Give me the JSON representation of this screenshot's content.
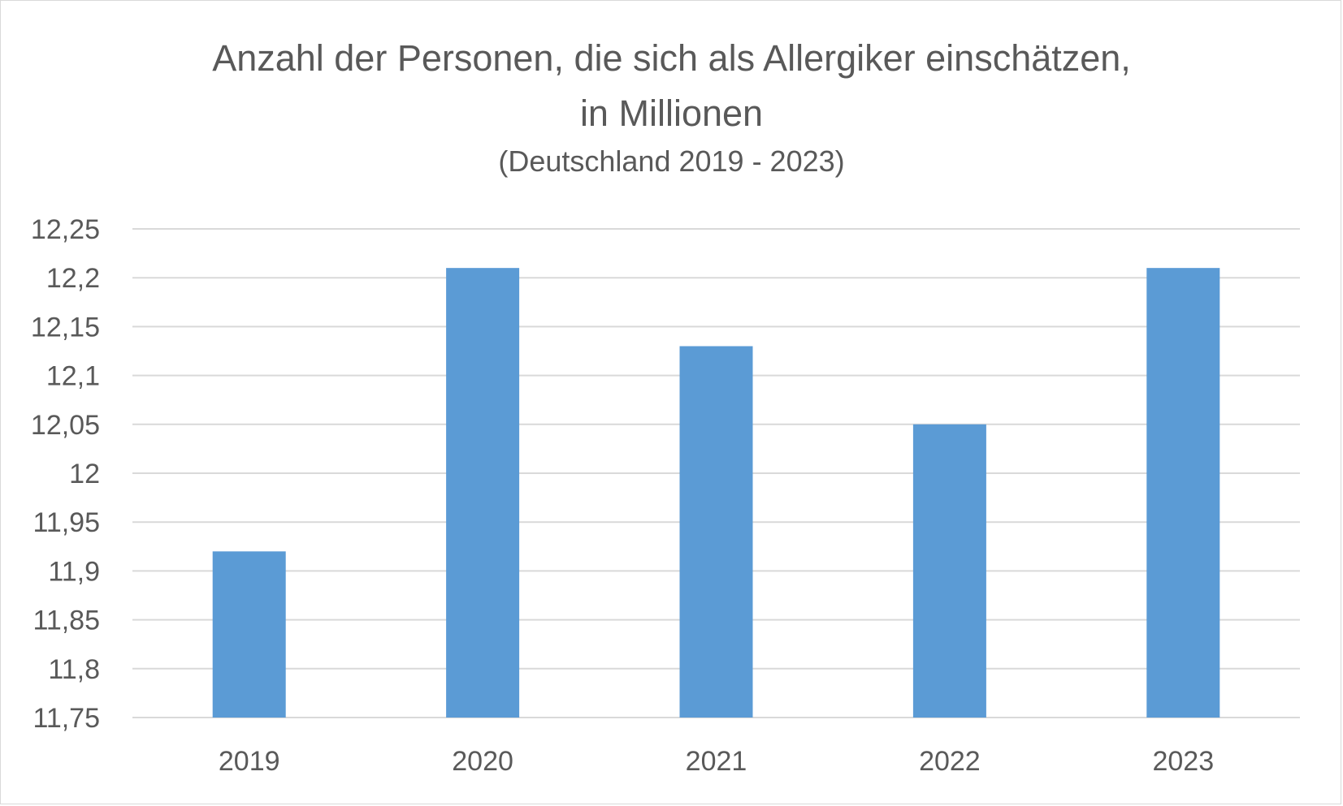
{
  "chart_data": {
    "type": "bar",
    "title_lines": [
      "Anzahl der Personen, die sich als Allergiker einschätzen,",
      "in Millionen"
    ],
    "subtitle": "(Deutschland 2019 - 2023)",
    "categories": [
      "2019",
      "2020",
      "2021",
      "2022",
      "2023"
    ],
    "values": [
      11.92,
      12.21,
      12.13,
      12.05,
      12.21
    ],
    "xlabel": "",
    "ylabel": "",
    "ylim": [
      11.75,
      12.25
    ],
    "yticks": [
      11.75,
      11.8,
      11.85,
      11.9,
      11.95,
      12,
      12.05,
      12.1,
      12.15,
      12.2,
      12.25
    ],
    "ytick_labels": [
      "11,75",
      "11,8",
      "11,85",
      "11,9",
      "11,95",
      "12",
      "12,05",
      "12,1",
      "12,15",
      "12,2",
      "12,25"
    ],
    "grid": true,
    "legend": "none",
    "bar_color": "#5b9bd5",
    "grid_color": "#d9d9d9",
    "text_color": "#595959"
  }
}
